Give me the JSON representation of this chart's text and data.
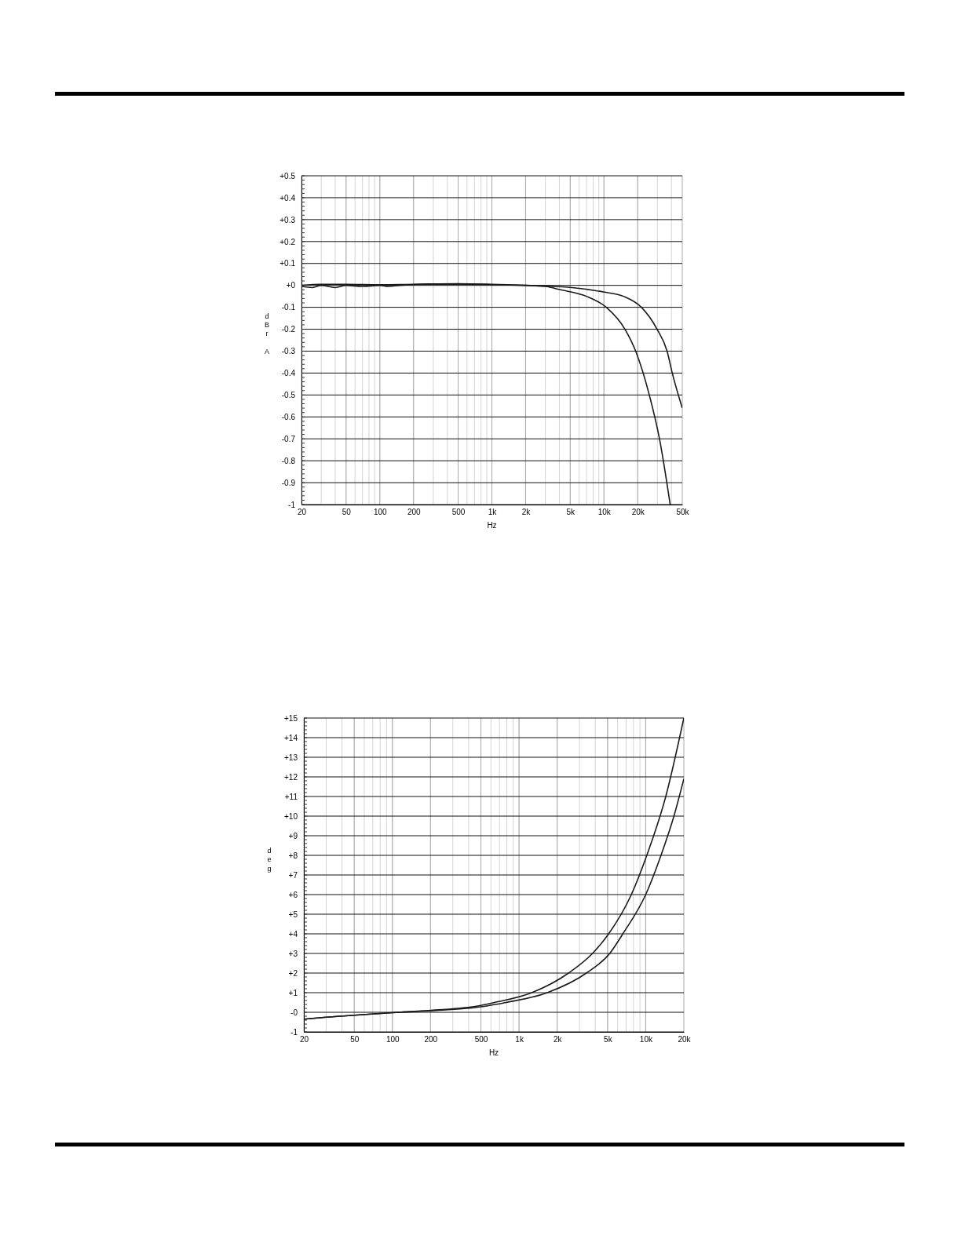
{
  "chart_data": [
    {
      "type": "line",
      "xlabel": "Hz",
      "ylabel": "dBr A",
      "log": "x",
      "grid": true,
      "xlim": [
        20,
        50000
      ],
      "ylim": [
        -1,
        0.5
      ],
      "xticks": [
        20,
        50,
        100,
        200,
        500,
        {
          "value": 1000,
          "label": "1k"
        },
        {
          "value": 2000,
          "label": "2k"
        },
        {
          "value": 5000,
          "label": "5k"
        },
        {
          "value": 10000,
          "label": "10k"
        },
        {
          "value": 20000,
          "label": "20k"
        },
        {
          "value": 50000,
          "label": "50k"
        }
      ],
      "yticks": [
        {
          "value": 0.5,
          "label": "+0.5"
        },
        {
          "value": 0.4,
          "label": "+0.4"
        },
        {
          "value": 0.3,
          "label": "+0.3"
        },
        {
          "value": 0.2,
          "label": "+0.2"
        },
        {
          "value": 0.1,
          "label": "+0.1"
        },
        {
          "value": 0,
          "label": "+0"
        },
        -0.1,
        -0.2,
        -0.3,
        -0.4,
        -0.5,
        -0.6,
        -0.7,
        -0.8,
        -0.9,
        -1
      ],
      "series": [
        {
          "color": "#1a1a1a",
          "x": [
            20,
            25,
            30,
            40,
            50,
            70,
            100,
            120,
            150,
            300,
            500,
            1000,
            2000,
            3000,
            4100,
            7000,
            10500,
            15400,
            19200,
            25400,
            31300,
            39000
          ],
          "values": [
            -0.005,
            -0.01,
            0,
            -0.01,
            0,
            -0.005,
            0,
            -0.005,
            0,
            0.005,
            0.005,
            0.003,
            0,
            -0.005,
            -0.02,
            -0.05,
            -0.1,
            -0.2,
            -0.3,
            -0.5,
            -0.7,
            -1
          ]
        },
        {
          "color": "#1a1a1a",
          "x": [
            20,
            30,
            50,
            100,
            200,
            500,
            1000,
            2000,
            3000,
            5200,
            9900,
            15000,
            21600,
            29800,
            36600,
            40700,
            50000
          ],
          "values": [
            0,
            0.005,
            0.005,
            0.003,
            0.005,
            0.008,
            0.005,
            0,
            -0.003,
            -0.01,
            -0.03,
            -0.05,
            -0.1,
            -0.2,
            -0.3,
            -0.4,
            -0.56
          ]
        }
      ]
    },
    {
      "type": "line",
      "xlabel": "Hz",
      "ylabel": "deg",
      "log": "x",
      "grid": true,
      "xlim": [
        20,
        20000
      ],
      "ylim": [
        -1,
        15
      ],
      "xticks": [
        20,
        50,
        100,
        200,
        500,
        {
          "value": 1000,
          "label": "1k"
        },
        {
          "value": 2000,
          "label": "2k"
        },
        {
          "value": 5000,
          "label": "5k"
        },
        {
          "value": 10000,
          "label": "10k"
        },
        {
          "value": 20000,
          "label": "20k"
        }
      ],
      "yticks": [
        {
          "value": 15,
          "label": "+15"
        },
        {
          "value": 14,
          "label": "+14"
        },
        {
          "value": 13,
          "label": "+13"
        },
        {
          "value": 12,
          "label": "+12"
        },
        {
          "value": 11,
          "label": "+11"
        },
        {
          "value": 10,
          "label": "+10"
        },
        {
          "value": 9,
          "label": "+9"
        },
        {
          "value": 8,
          "label": "+8"
        },
        {
          "value": 7,
          "label": "+7"
        },
        {
          "value": 6,
          "label": "+6"
        },
        {
          "value": 5,
          "label": "+5"
        },
        {
          "value": 4,
          "label": "+4"
        },
        {
          "value": 3,
          "label": "+3"
        },
        {
          "value": 2,
          "label": "+2"
        },
        {
          "value": 1,
          "label": "+1"
        },
        {
          "value": 0,
          "label": "-0"
        },
        -1
      ],
      "series": [
        {
          "color": "#1a1a1a",
          "x": [
            20,
            30,
            50,
            100,
            200,
            500,
            640,
            1260,
            2460,
            3800,
            5100,
            7700,
            10200,
            14400,
            20000
          ],
          "values": [
            -0.35,
            -0.25,
            -0.15,
            -0.02,
            0.1,
            0.35,
            0.5,
            1,
            2,
            3,
            4,
            6,
            8,
            11,
            15
          ]
        },
        {
          "color": "#1a1a1a",
          "x": [
            20,
            30,
            50,
            100,
            200,
            500,
            790,
            1670,
            3400,
            5200,
            6600,
            10000,
            13200,
            16700,
            20000
          ],
          "values": [
            -0.35,
            -0.25,
            -0.15,
            -0.02,
            0.08,
            0.28,
            0.5,
            1,
            2,
            3,
            4,
            6,
            8,
            10,
            11.9
          ]
        }
      ]
    }
  ]
}
